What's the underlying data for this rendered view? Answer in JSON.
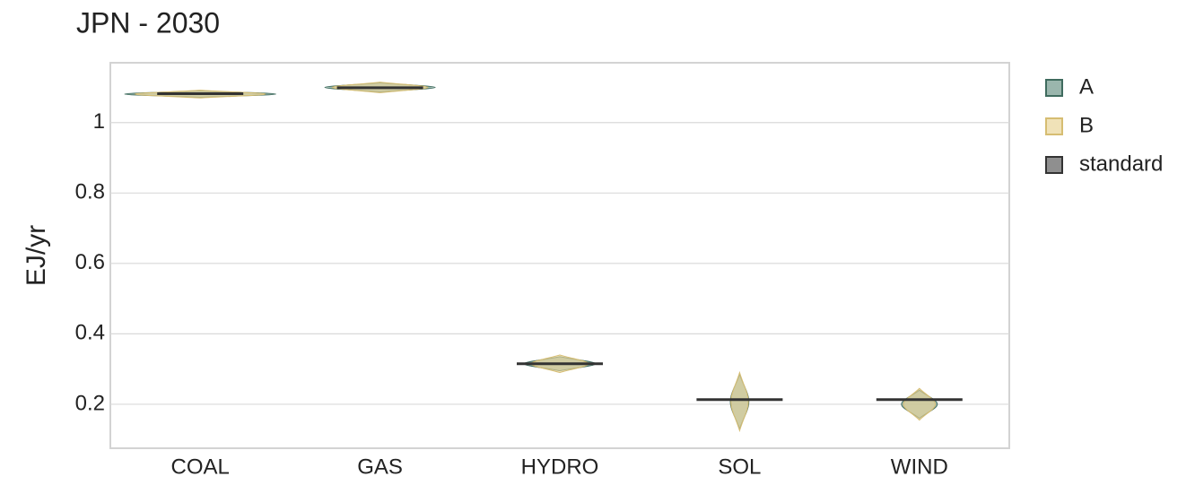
{
  "chart_data": {
    "type": "violin",
    "title": "JPN - 2030",
    "y_label": "EJ/yr",
    "categories": [
      "COAL",
      "GAS",
      "HYDRO",
      "SOL",
      "WIND"
    ],
    "series": [
      {
        "name": "A",
        "color": "#6f978a",
        "stroke": "#3f6b5e",
        "ranges": [
          [
            1.072,
            1.09
          ],
          [
            1.087,
            1.113
          ],
          [
            0.295,
            0.335
          ],
          [
            0.13,
            0.285
          ],
          [
            0.16,
            0.24
          ]
        ]
      },
      {
        "name": "B",
        "color": "#e9d69a",
        "stroke": "#d6bd72",
        "ranges": [
          [
            1.07,
            1.092
          ],
          [
            1.085,
            1.115
          ],
          [
            0.29,
            0.34
          ],
          [
            0.125,
            0.29
          ],
          [
            0.155,
            0.245
          ]
        ]
      },
      {
        "name": "standard",
        "color": "#333333",
        "values": [
          1.082,
          1.099,
          0.315,
          0.213,
          0.213
        ]
      }
    ],
    "ylim": [
      0.075,
      1.17
    ],
    "yticks": [
      0.2,
      0.4,
      0.6,
      0.8,
      1
    ],
    "grid": true
  }
}
